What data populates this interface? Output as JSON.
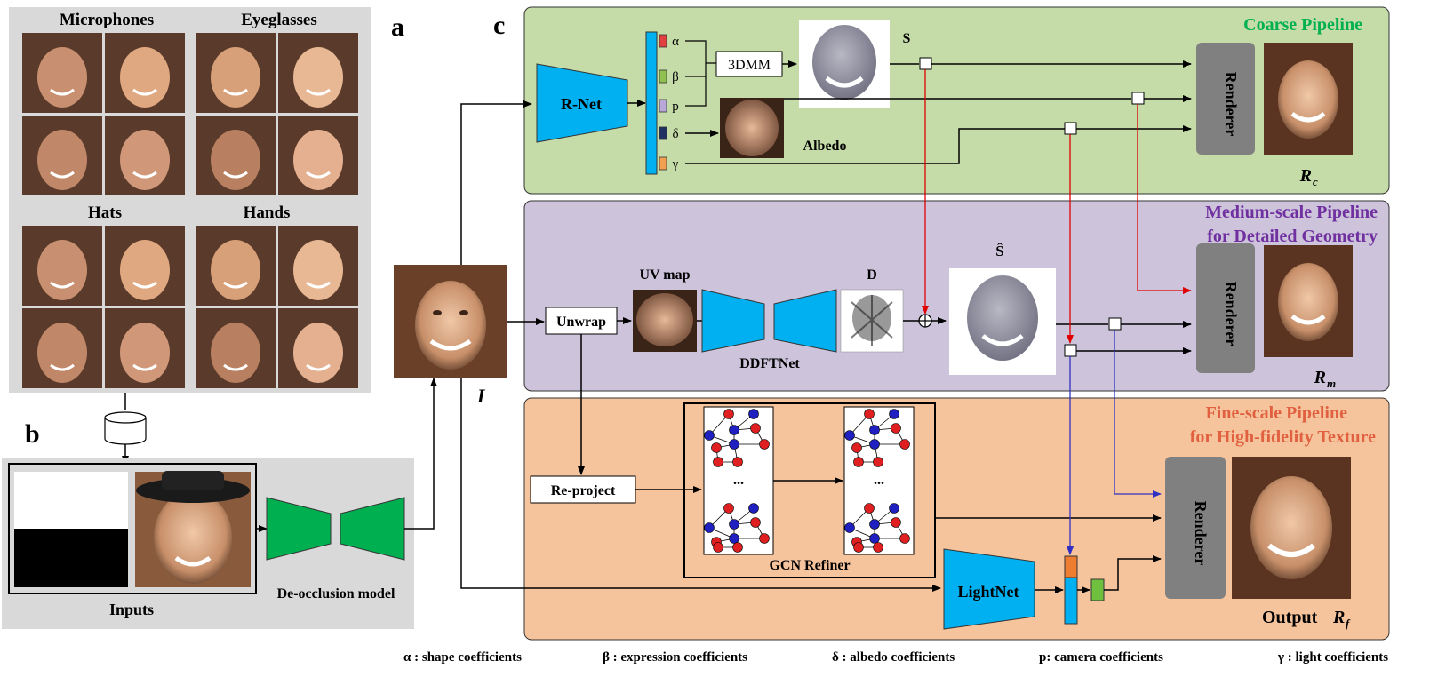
{
  "panels": {
    "a": "a",
    "b": "b",
    "c": "c"
  },
  "categories": {
    "microphones": "Microphones",
    "eyeglasses": "Eyeglasses",
    "hats": "Hats",
    "hands": "Hands"
  },
  "inputs_label": "Inputs",
  "deocclusion_label": "De-occlusion model",
  "input_symbol": "I",
  "coarse": {
    "title": "Coarse Pipeline",
    "rnet": "R-Net",
    "threedmm": "3DMM",
    "s_label": "S",
    "albedo": "Albedo",
    "renderer": "Renderer",
    "output_main": "R",
    "output_sub": "c",
    "coeffs": [
      "α",
      "β",
      "p",
      "δ",
      "γ"
    ]
  },
  "medium": {
    "title_line1": "Medium-scale Pipeline",
    "title_line2": "for Detailed Geometry",
    "unwrap": "Unwrap",
    "uvmap": "UV map",
    "ddftnet": "DDFTNet",
    "d_label": "D",
    "s_hat": "Ŝ",
    "renderer": "Renderer",
    "output_main": "R",
    "output_sub": "m"
  },
  "fine": {
    "title_line1": "Fine-scale Pipeline",
    "title_line2": "for High-fidelity Texture",
    "reproject": "Re-project",
    "gcn": "GCN Refiner",
    "dots": "...",
    "lightnet": "LightNet",
    "renderer": "Renderer",
    "output_prefix": "Output",
    "output_main": "R",
    "output_sub": "f"
  },
  "legend": [
    "α : shape coefficients",
    "β : expression coefficients",
    "δ : albedo coefficients",
    "p: camera coefficients",
    "γ : light coefficients"
  ],
  "colors": {
    "coarse_bg": "#c5dca8",
    "medium_bg": "#cdc4dc",
    "fine_bg": "#f6c49c",
    "net_blue": "#00b0f0",
    "net_green": "#00b050",
    "renderer_gray": "#808080",
    "coarse_title": "#00b050",
    "medium_title": "#7030a0",
    "fine_title": "#e06040",
    "red_arrow": "#e00000",
    "blue_arrow": "#3030c0"
  }
}
